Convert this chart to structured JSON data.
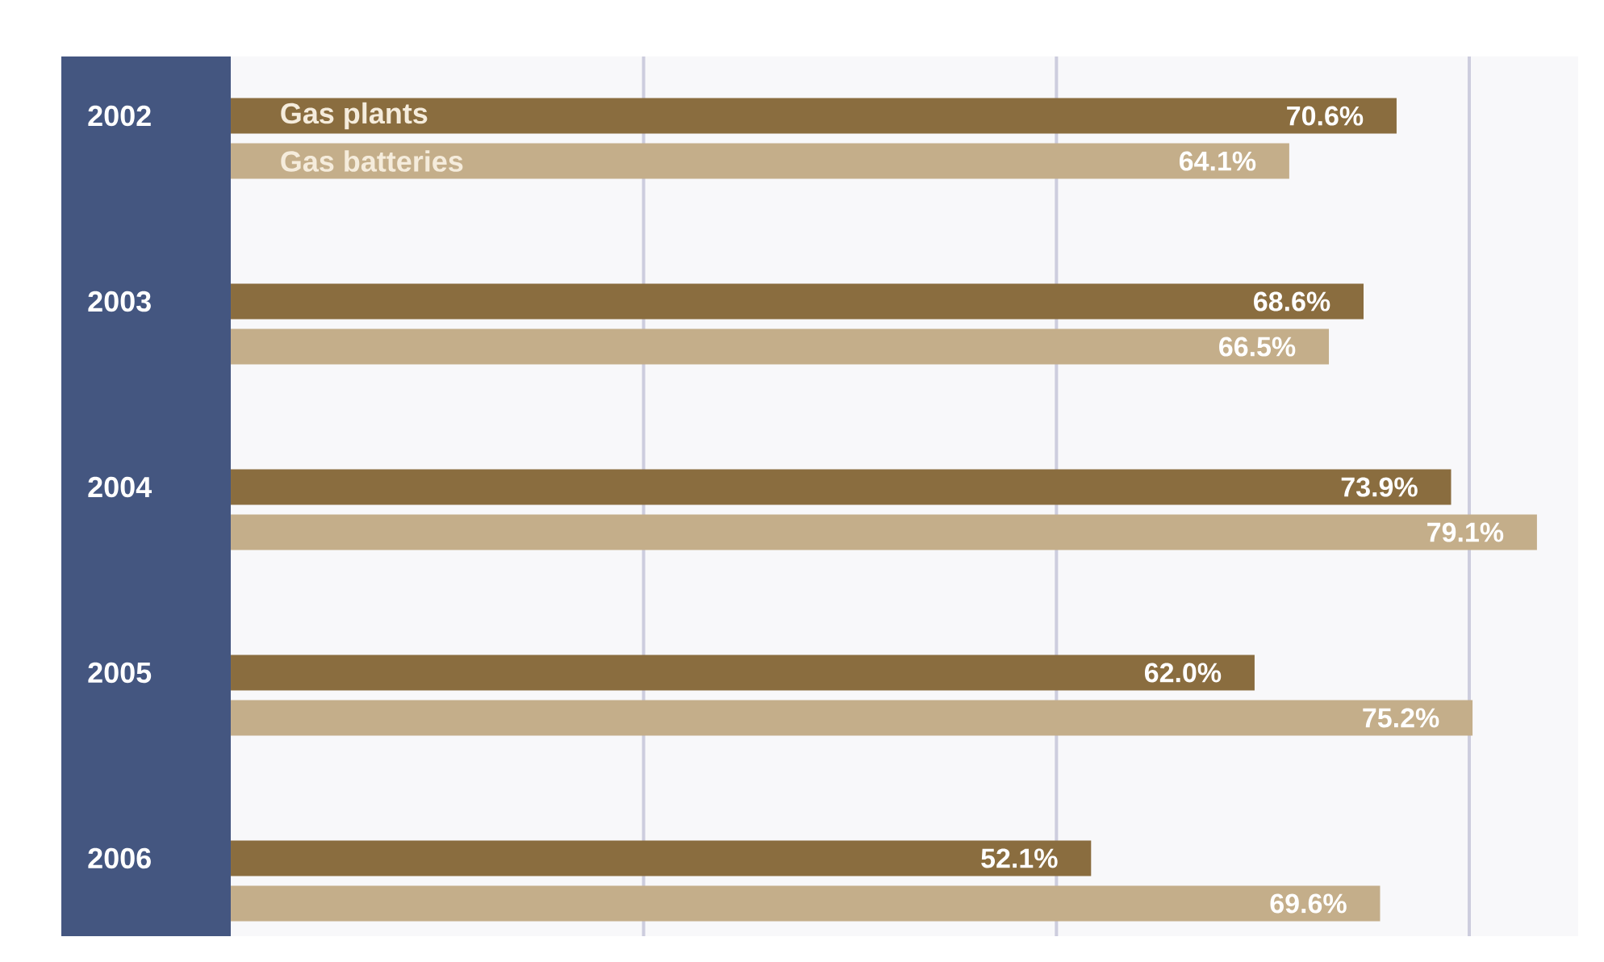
{
  "chart_data": {
    "type": "bar",
    "orientation": "horizontal",
    "categories": [
      "2002",
      "2003",
      "2004",
      "2005",
      "2006"
    ],
    "series": [
      {
        "name": "Gas plants",
        "color": "#8a6d3f",
        "values": [
          70.6,
          68.6,
          73.9,
          62.0,
          52.1
        ],
        "value_labels": [
          "70.6%",
          "68.6%",
          "73.9%",
          "62.0%",
          "52.1%"
        ]
      },
      {
        "name": "Gas batteries",
        "color": "#c4ae8a",
        "values": [
          64.1,
          66.5,
          79.1,
          75.2,
          69.6
        ],
        "value_labels": [
          "64.1%",
          "66.5%",
          "79.1%",
          "75.2%",
          "69.6%"
        ]
      }
    ],
    "xlim": [
      0,
      81.5
    ],
    "xticks": [
      {
        "value": 25,
        "label": null
      },
      {
        "value": 50,
        "label": null
      },
      {
        "value": 75,
        "label": null
      }
    ],
    "grid": "x",
    "tick_labels": "y"
  }
}
